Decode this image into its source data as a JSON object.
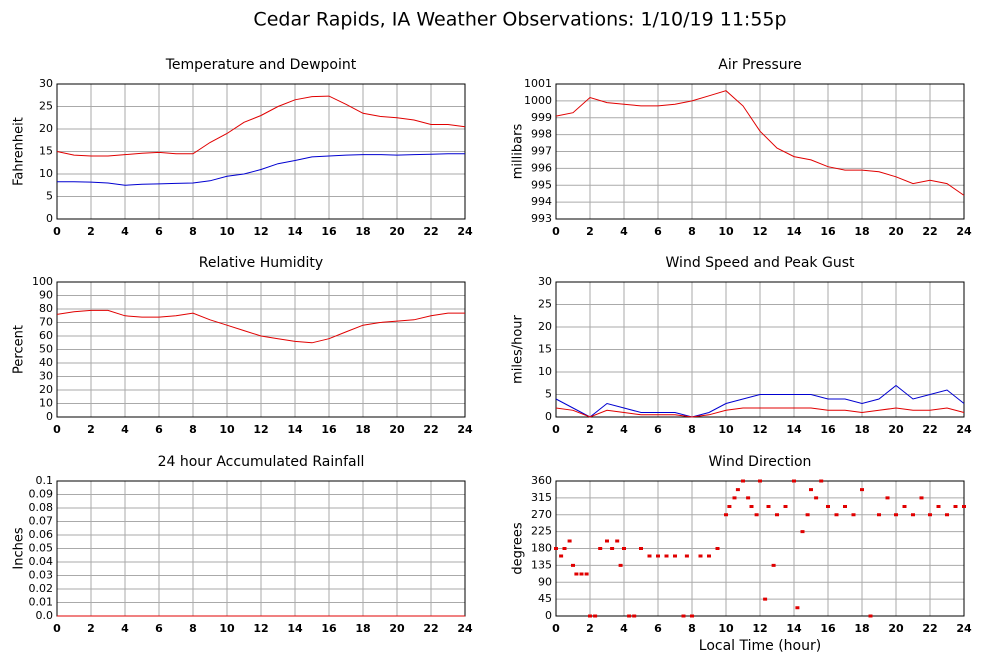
{
  "title": "Cedar Rapids, IA Weather Observations: 1/10/19 11:55p",
  "chart_data": [
    {
      "type": "line",
      "title": "Temperature and Dewpoint",
      "ylabel": "Fahrenheit",
      "x": [
        0,
        1,
        2,
        3,
        4,
        5,
        6,
        7,
        8,
        9,
        10,
        11,
        12,
        13,
        14,
        15,
        16,
        17,
        18,
        19,
        20,
        21,
        22,
        23,
        24
      ],
      "series": [
        {
          "color": "#e00000",
          "values": [
            15,
            14.2,
            14,
            14,
            14.3,
            14.6,
            14.8,
            14.5,
            14.5,
            17,
            19,
            21.5,
            23,
            25,
            26.5,
            27.2,
            27.3,
            25.5,
            23.5,
            22.8,
            22.5,
            22,
            21,
            21,
            20.5
          ]
        },
        {
          "color": "#0000d0",
          "values": [
            8.3,
            8.3,
            8.2,
            8,
            7.5,
            7.7,
            7.8,
            7.9,
            8,
            8.5,
            9.5,
            10,
            11,
            12.3,
            13,
            13.8,
            14,
            14.2,
            14.3,
            14.3,
            14.2,
            14.3,
            14.4,
            14.5,
            14.5
          ]
        }
      ],
      "xlim": [
        0,
        24
      ],
      "xticks": [
        0,
        2,
        4,
        6,
        8,
        10,
        12,
        14,
        16,
        18,
        20,
        22,
        24
      ],
      "ylim": [
        0,
        30
      ],
      "yticks": [
        0,
        5,
        10,
        15,
        20,
        25,
        30
      ],
      "grid": true
    },
    {
      "type": "line",
      "title": "Air Pressure",
      "ylabel": "millibars",
      "x": [
        0,
        1,
        2,
        3,
        4,
        5,
        6,
        7,
        8,
        9,
        10,
        11,
        12,
        13,
        14,
        15,
        16,
        17,
        18,
        19,
        20,
        21,
        22,
        23,
        24
      ],
      "series": [
        {
          "color": "#e00000",
          "values": [
            999.1,
            999.3,
            1000.2,
            999.9,
            999.8,
            999.7,
            999.7,
            999.8,
            1000,
            1000.3,
            1000.6,
            999.7,
            998.2,
            997.2,
            996.7,
            996.5,
            996.1,
            995.9,
            995.9,
            995.8,
            995.5,
            995.1,
            995.3,
            995.1,
            994.4
          ]
        }
      ],
      "xlim": [
        0,
        24
      ],
      "xticks": [
        0,
        2,
        4,
        6,
        8,
        10,
        12,
        14,
        16,
        18,
        20,
        22,
        24
      ],
      "ylim": [
        993,
        1001
      ],
      "yticks": [
        993,
        994,
        995,
        996,
        997,
        998,
        999,
        1000,
        1001
      ],
      "grid": true
    },
    {
      "type": "line",
      "title": "Relative Humidity",
      "ylabel": "Percent",
      "x": [
        0,
        1,
        2,
        3,
        4,
        5,
        6,
        7,
        8,
        9,
        10,
        11,
        12,
        13,
        14,
        15,
        16,
        17,
        18,
        19,
        20,
        21,
        22,
        23,
        24
      ],
      "series": [
        {
          "color": "#e00000",
          "values": [
            76,
            78,
            79,
            79,
            75,
            74,
            74,
            75,
            77,
            72,
            68,
            64,
            60,
            58,
            56,
            55,
            58,
            63,
            68,
            70,
            71,
            72,
            75,
            77,
            77
          ]
        }
      ],
      "xlim": [
        0,
        24
      ],
      "xticks": [
        0,
        2,
        4,
        6,
        8,
        10,
        12,
        14,
        16,
        18,
        20,
        22,
        24
      ],
      "ylim": [
        0,
        100
      ],
      "yticks": [
        0,
        10,
        20,
        30,
        40,
        50,
        60,
        70,
        80,
        90,
        100
      ],
      "grid": true
    },
    {
      "type": "line",
      "title": "Wind Speed and Peak Gust",
      "ylabel": "miles/hour",
      "x": [
        0,
        1,
        2,
        3,
        4,
        5,
        6,
        7,
        8,
        9,
        10,
        11,
        12,
        13,
        14,
        15,
        16,
        17,
        18,
        19,
        20,
        21,
        22,
        23,
        24
      ],
      "series": [
        {
          "color": "#0000d0",
          "values": [
            4,
            2,
            0,
            3,
            2,
            1,
            1,
            1,
            0,
            1,
            3,
            4,
            5,
            5,
            5,
            5,
            4,
            4,
            3,
            4,
            7,
            4,
            5,
            6,
            3
          ]
        },
        {
          "color": "#e00000",
          "values": [
            2,
            1.5,
            0,
            1.5,
            1,
            0.5,
            0.5,
            0.5,
            0,
            0.5,
            1.5,
            2,
            2,
            2,
            2,
            2,
            1.5,
            1.5,
            1,
            1.5,
            2,
            1.5,
            1.5,
            2,
            1
          ]
        }
      ],
      "xlim": [
        0,
        24
      ],
      "xticks": [
        0,
        2,
        4,
        6,
        8,
        10,
        12,
        14,
        16,
        18,
        20,
        22,
        24
      ],
      "ylim": [
        0,
        30
      ],
      "yticks": [
        0,
        5,
        10,
        15,
        20,
        25,
        30
      ],
      "grid": true
    },
    {
      "type": "line",
      "title": "24 hour Accumulated Rainfall",
      "ylabel": "Inches",
      "x": [
        0,
        1,
        2,
        3,
        4,
        5,
        6,
        7,
        8,
        9,
        10,
        11,
        12,
        13,
        14,
        15,
        16,
        17,
        18,
        19,
        20,
        21,
        22,
        23,
        24
      ],
      "series": [
        {
          "color": "#e00000",
          "values": [
            0,
            0,
            0,
            0,
            0,
            0,
            0,
            0,
            0,
            0,
            0,
            0,
            0,
            0,
            0,
            0,
            0,
            0,
            0,
            0,
            0,
            0,
            0,
            0,
            0
          ]
        }
      ],
      "xlim": [
        0,
        24
      ],
      "xticks": [
        0,
        2,
        4,
        6,
        8,
        10,
        12,
        14,
        16,
        18,
        20,
        22,
        24
      ],
      "ylim": [
        0,
        0.1
      ],
      "yticks": [
        {
          "value": 0,
          "label": "0.0"
        },
        0.01,
        0.02,
        0.03,
        0.04,
        0.05,
        0.06,
        0.07,
        0.08,
        0.09,
        0.1
      ],
      "grid": true
    },
    {
      "type": "scatter",
      "title": "Wind Direction",
      "ylabel": "degrees",
      "xlabel": "Local Time (hour)",
      "x": [
        0,
        0.3,
        0.5,
        0.8,
        1,
        1.2,
        1.5,
        1.8,
        2,
        2.3,
        2.6,
        3,
        3.3,
        3.6,
        3.8,
        4,
        4.3,
        4.6,
        5,
        5.5,
        6,
        6.5,
        7,
        7.5,
        7.7,
        8,
        8.5,
        9,
        9.5,
        10,
        10.2,
        10.5,
        10.7,
        11,
        11.3,
        11.5,
        11.8,
        12,
        12.3,
        12.5,
        12.8,
        13,
        13.5,
        14,
        14.2,
        14.5,
        14.8,
        15,
        15.3,
        15.6,
        16,
        16.5,
        17,
        17.5,
        18,
        18.5,
        19,
        19.5,
        20,
        20.5,
        21,
        21.5,
        22,
        22.5,
        23,
        23.5,
        24
      ],
      "series": [
        {
          "color": "#e00000",
          "values": [
            180,
            160,
            180,
            200,
            135,
            112,
            112,
            112,
            0,
            0,
            180,
            200,
            180,
            200,
            135,
            180,
            0,
            0,
            180,
            160,
            160,
            160,
            160,
            0,
            160,
            0,
            160,
            160,
            180,
            270,
            292,
            315,
            337,
            360,
            315,
            292,
            270,
            360,
            45,
            292,
            135,
            270,
            292,
            360,
            22,
            225,
            270,
            337,
            315,
            360,
            292,
            270,
            292,
            270,
            337,
            0,
            270,
            315,
            270,
            292,
            270,
            315,
            270,
            292,
            270,
            292,
            292
          ]
        }
      ],
      "xlim": [
        0,
        24
      ],
      "xticks": [
        0,
        2,
        4,
        6,
        8,
        10,
        12,
        14,
        16,
        18,
        20,
        22,
        24
      ],
      "ylim": [
        0,
        360
      ],
      "yticks": [
        0,
        45,
        90,
        135,
        180,
        225,
        270,
        315,
        360
      ],
      "grid": true
    }
  ]
}
